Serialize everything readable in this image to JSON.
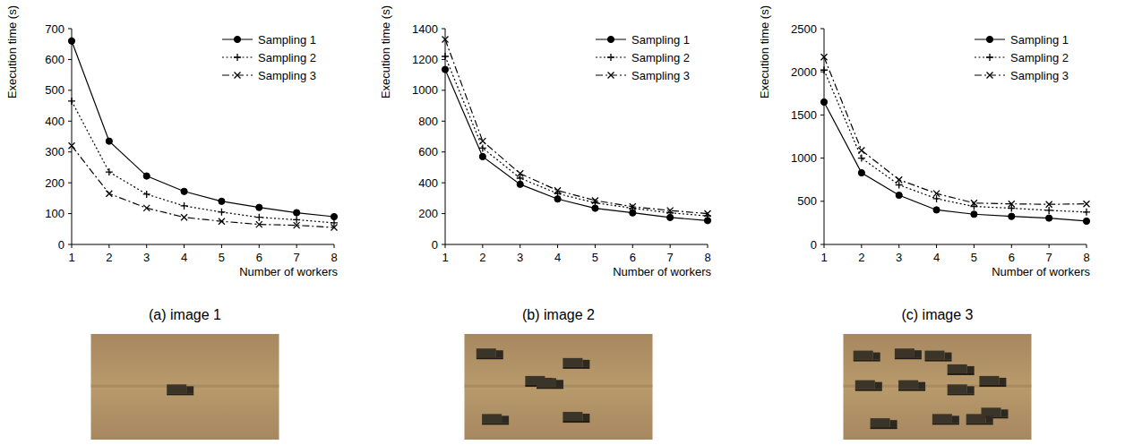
{
  "chart_data": [
    {
      "type": "line",
      "title": "(a) image 1",
      "x_label": "Number of workers",
      "y_label": "Execution time (s)",
      "x": [
        1,
        2,
        3,
        4,
        5,
        6,
        7,
        8
      ],
      "xlim": [
        1,
        8
      ],
      "xticks": [
        1,
        2,
        3,
        4,
        5,
        6,
        7,
        8
      ],
      "ylim": [
        0,
        700
      ],
      "yticks": [
        0,
        100,
        200,
        300,
        400,
        500,
        600,
        700
      ],
      "legend": "top-right",
      "series": [
        {
          "name": "Sampling 1",
          "color": "#000000",
          "marker": "circle",
          "line_style": "solid",
          "values": [
            660,
            335,
            222,
            172,
            140,
            120,
            103,
            90
          ]
        },
        {
          "name": "Sampling 2",
          "color": "#000000",
          "marker": "plus",
          "line_style": "dotted",
          "values": [
            465,
            235,
            163,
            125,
            105,
            88,
            80,
            70
          ]
        },
        {
          "name": "Sampling 3",
          "color": "#000000",
          "marker": "x",
          "line_style": "dashdot",
          "values": [
            320,
            165,
            118,
            88,
            75,
            65,
            62,
            55
          ]
        }
      ]
    },
    {
      "type": "line",
      "title": "(b) image 2",
      "x_label": "Number of workers",
      "y_label": "Execution time (s)",
      "x": [
        1,
        2,
        3,
        4,
        5,
        6,
        7,
        8
      ],
      "xlim": [
        1,
        8
      ],
      "xticks": [
        1,
        2,
        3,
        4,
        5,
        6,
        7,
        8
      ],
      "ylim": [
        0,
        1400
      ],
      "yticks": [
        0,
        200,
        400,
        600,
        800,
        1000,
        1200,
        1400
      ],
      "legend": "top-right",
      "series": [
        {
          "name": "Sampling 1",
          "color": "#000000",
          "marker": "circle",
          "line_style": "solid",
          "values": [
            1135,
            570,
            390,
            295,
            235,
            205,
            175,
            155
          ]
        },
        {
          "name": "Sampling 2",
          "color": "#000000",
          "marker": "plus",
          "line_style": "dotted",
          "values": [
            1220,
            625,
            430,
            330,
            270,
            235,
            205,
            185
          ]
        },
        {
          "name": "Sampling 3",
          "color": "#000000",
          "marker": "x",
          "line_style": "dashdot",
          "values": [
            1330,
            670,
            460,
            350,
            285,
            245,
            220,
            200
          ]
        }
      ]
    },
    {
      "type": "line",
      "title": "(c) image 3",
      "x_label": "Number of workers",
      "y_label": "Execution time (s)",
      "x": [
        1,
        2,
        3,
        4,
        5,
        6,
        7,
        8
      ],
      "xlim": [
        1,
        8
      ],
      "xticks": [
        1,
        2,
        3,
        4,
        5,
        6,
        7,
        8
      ],
      "ylim": [
        0,
        2500
      ],
      "yticks": [
        0,
        500,
        1000,
        1500,
        2000,
        2500
      ],
      "legend": "top-right",
      "series": [
        {
          "name": "Sampling 1",
          "color": "#000000",
          "marker": "circle",
          "line_style": "solid",
          "values": [
            1650,
            830,
            570,
            400,
            350,
            325,
            305,
            270
          ]
        },
        {
          "name": "Sampling 2",
          "color": "#000000",
          "marker": "plus",
          "line_style": "dotted",
          "values": [
            2020,
            1000,
            690,
            530,
            440,
            420,
            395,
            375
          ]
        },
        {
          "name": "Sampling 3",
          "color": "#000000",
          "marker": "x",
          "line_style": "dashdot",
          "values": [
            2170,
            1090,
            750,
            590,
            480,
            470,
            465,
            470
          ]
        }
      ]
    }
  ]
}
